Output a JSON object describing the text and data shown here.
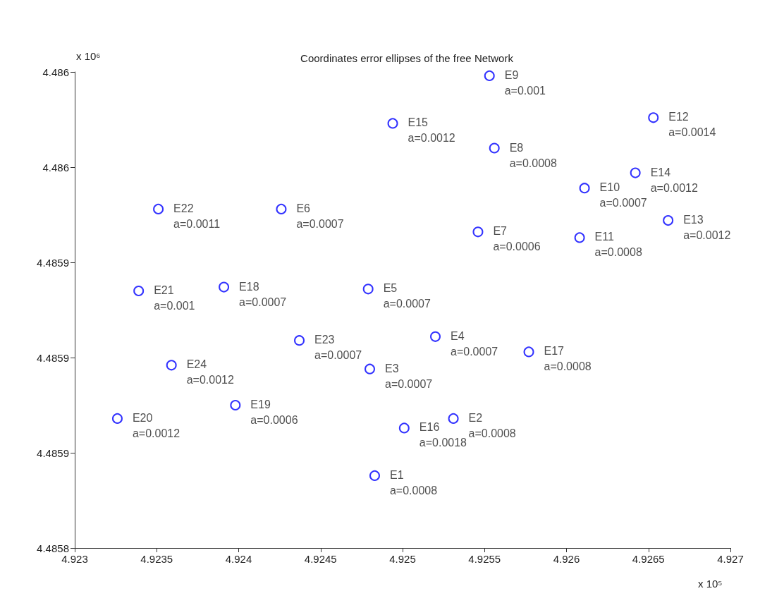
{
  "chart_data": {
    "type": "scatter",
    "title": "Coordinates error ellipses of the free Network",
    "x": [
      4.92483,
      4.92531,
      4.9248,
      4.9252,
      4.92479,
      4.92426,
      4.92546,
      4.92556,
      4.92553,
      4.92611,
      4.92608,
      4.92653,
      4.92662,
      4.92642,
      4.92494,
      4.92501,
      4.92577,
      4.92391,
      4.92398,
      4.92326,
      4.92339,
      4.92351,
      4.92437,
      4.92359
    ],
    "series": [
      {
        "color": "#0000ff",
        "values": [
          4.485838,
          4.485868,
          4.485894,
          4.485911,
          4.485936,
          4.485978,
          4.485966,
          4.48601,
          4.486048,
          4.485989,
          4.485963,
          4.486026,
          4.485972,
          4.485997,
          4.486023,
          4.485863,
          4.485903,
          4.485937,
          4.485875,
          4.485868,
          4.485935,
          4.485978,
          4.485909,
          4.485896
        ],
        "value_labels": [
          "E1\na=0.0008",
          "E2\na=0.0008",
          "E3\na=0.0007",
          "E4\na=0.0007",
          "E5\na=0.0007",
          "E6\na=0.0007",
          "E7\na=0.0006",
          "E8\na=0.0008",
          "E9\na=0.001",
          "E10\na=0.0007",
          "E11\na=0.0008",
          "E12\na=0.0014",
          "E13\na=0.0012",
          "E14\na=0.0012",
          "E15\na=0.0012",
          "E16\na=0.0018",
          "E17\na=0.0008",
          "E18\na=0.0007",
          "E19\na=0.0006",
          "E20\na=0.0012",
          "E21\na=0.001",
          "E22\na=0.0011",
          "E23\na=0.0007",
          "E24\na=0.0012"
        ]
      }
    ],
    "xlim": [
      4.923,
      4.927
    ],
    "xticks": [
      4.923,
      4.9235,
      4.924,
      4.9245,
      4.925,
      4.9255,
      4.926,
      4.9265,
      4.927
    ],
    "ylim": [
      4.4858,
      4.48605
    ],
    "yticks": [
      4.4858,
      {
        "value": 4.48585,
        "label": "4.4859"
      },
      {
        "value": 4.4859,
        "label": "4.4859"
      },
      {
        "value": 4.48595,
        "label": "4.4859"
      },
      {
        "value": 4.486,
        "label": "4.486"
      },
      {
        "value": 4.48605,
        "label": "4.486"
      }
    ],
    "annotations": [
      "x 10⁶",
      "x 10⁵"
    ],
    "marker": "circle",
    "grid": false
  }
}
